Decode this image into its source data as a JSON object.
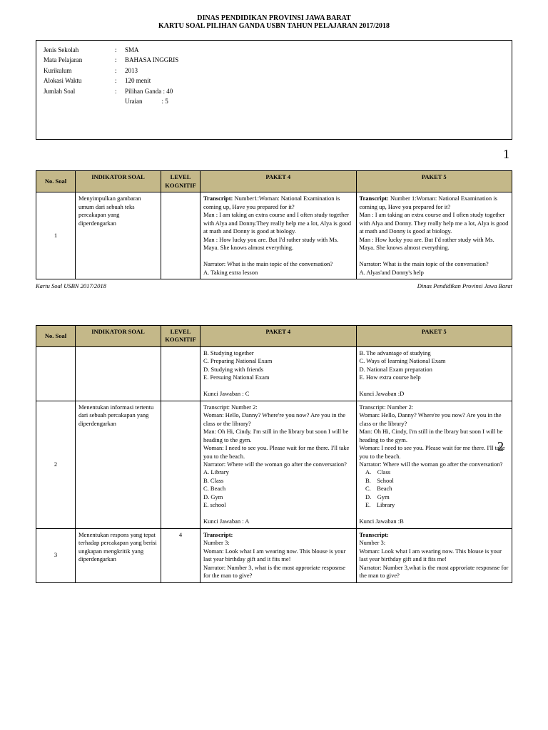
{
  "header": {
    "line1": "DINAS PENDIDIKAN PROVINSI JAWA BARAT",
    "line2": "KARTU SOAL PILIHAN GANDA USBN TAHUN PELAJARAN 2017/2018"
  },
  "info": {
    "rows": [
      {
        "label": "Jenis Sekolah",
        "value": "SMA"
      },
      {
        "label": "Mata Pelajaran",
        "value": "BAHASA INGGRIS"
      },
      {
        "label": "Kurikulum",
        "value": "2013"
      },
      {
        "label": "Alokasi Waktu",
        "value": "120 menit"
      },
      {
        "label": "Jumlah Soal",
        "value": "Pilihan Ganda : 40"
      }
    ],
    "extra": "Uraian            : 5"
  },
  "page1num": "1",
  "page2num": "2",
  "columns": {
    "c1": "No. Soal",
    "c2": "INDIKATOR SOAL",
    "c3": "LEVEL KOGNITIF",
    "c4": "PAKET 4",
    "c5": "PAKET 5"
  },
  "t1": {
    "no": "1",
    "ind": "Menyimpulkan gambaran umum dari sebuah teks percakapan yang diperdengarkan",
    "p4": "Transcript: Number1:Woman: National Examination is coming up, Have you prepared for it?\nMan : I am taking an extra course and I often study together with Alya and Donny.They really help me a lot, Alya is good at math and Donny is good at biology.\nMan : How lucky you are. But I'd rather study with Ms. Maya. She knows almost everything.\n\nNarrator: What is the main topic of the conversation?\nA. Taking extra lesson",
    "p5": "Transcript: Number 1:Woman: National Examination is coming up, Have you prepared for it?\nMan : I am taking an extra course and I often study together with Alya and Donny. They really help me a lot, Alya is good at math and Donny is good at biology.\nMan : How lucky you are. But I'd rather study with Ms. Maya. She knows almost everything.\n\nNarrator: What is the main topic of the conversation?\nA. Alyas'and Donny's help"
  },
  "footer": {
    "left": "Kartu Soal USBN 2017/2018",
    "right": "Dinas Pendidikan Provinsi Jawa Barat"
  },
  "t2r1": {
    "p4": "B. Studying together\nC. Preparing National Exam\nD. Studying with friends\nE. Persuing National Exam\n\nKunci Jawaban : C",
    "p5": "B. The advantage of studying\nC. Ways of learning National Exam\nD. National Exam preparation\nE. How extra course help\n\nKunci Jawaban :D"
  },
  "t2r2": {
    "no": "2",
    "ind": "Menentukan informasi tertentu dari sebuah percakapan yang diperdengarkan",
    "p4": "Transcript: Number 2:\nWoman: Hello, Danny? Where're you now? Are you in the class or the library?\nMan: Oh Hi, Cindy. I'm still in the library but soon I will be heading to the gym.\nWoman: I need to see you. Please wait for me there. I'll take you to the beach.\nNarrator: Where will the woman go after the conversation?\nA. Library\nB. Class\nC. Beach\nD. Gym\nE. school\n\nKunci Jawaban : A",
    "p5": "Transcript: Number 2:\nWoman: Hello, Danny? Where're you now? Are you in the class or the library?\nMan: Oh Hi, Cindy, I'm still in the lbrary but soon I will be heading to the gym.\nWoman: I need to see you. Please wait for me there. I'll take you to the beach.\nNarrator: Where will the woman go after the conversation?\n    A.    Class\n    B.    School\n    C.    Beach\n    D.    Gym\n    E.    Library\n\nKunci Jawaban :B"
  },
  "t2r3": {
    "no": "3",
    "ind": "Menentukan respons yang tepat terhadap percakapan yang berisi ungkapan mengkritik yang diperdengarkan",
    "lvl": "4",
    "p4": "Transcript:\nNumber 3:\nWoman: Look what I am wearing now. This blouse is your last year birthday gift and it fits me!\nNarrator: Number 3, what is the most approriate resposnse for the man to give?",
    "p5": "Transcript:\nNumber 3:\nWoman: Look what I am wearing now. This blouse is your last year birthday gift and it fits me!\nNarrator: Number 3,what is the most approriate resposnse for the man to give?"
  }
}
